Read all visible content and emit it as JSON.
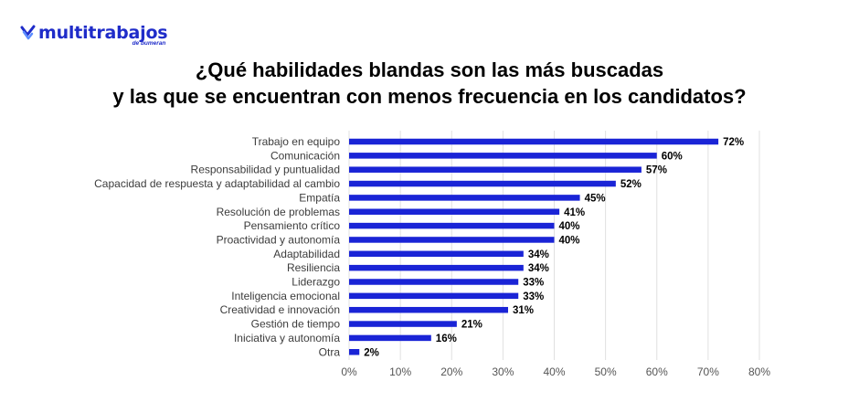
{
  "brand": {
    "name": "multitrabajos",
    "tagline": "de bumeran",
    "color": "#1f2cc9"
  },
  "header": {
    "title_line1": "¿Qué habilidades blandas son las más buscadas",
    "title_line2": "y las que se encuentran con menos frecuencia en los candidatos?"
  },
  "chart_data": {
    "type": "bar",
    "orientation": "horizontal",
    "title": "¿Qué habilidades blandas son las más buscadas y las que se encuentran con menos frecuencia en los candidatos?",
    "categories": [
      "Trabajo en equipo",
      "Comunicación",
      "Responsabilidad y puntualidad",
      "Capacidad de respuesta y adaptabilidad al cambio",
      "Empatía",
      "Resolución de problemas",
      "Pensamiento crítico",
      "Proactividad y autonomía",
      "Adaptabilidad",
      "Resiliencia",
      "Liderazgo",
      "Inteligencia emocional",
      "Creatividad e innovación",
      "Gestión de tiempo",
      "Iniciativa y autonomía",
      "Otra"
    ],
    "values": [
      72,
      60,
      57,
      52,
      45,
      41,
      40,
      40,
      34,
      34,
      33,
      33,
      31,
      21,
      16,
      2
    ],
    "value_labels": [
      "72%",
      "60%",
      "57%",
      "52%",
      "45%",
      "41%",
      "40%",
      "40%",
      "34%",
      "34%",
      "33%",
      "33%",
      "31%",
      "21%",
      "16%",
      "2%"
    ],
    "xlim": [
      0,
      80
    ],
    "xticks": [
      "0%",
      "10%",
      "20%",
      "30%",
      "40%",
      "50%",
      "60%",
      "70%",
      "80%"
    ],
    "xlabel": "",
    "ylabel": "",
    "grid": true,
    "bar_color": "#1a24d6",
    "grid_color": "#e0e0e0"
  }
}
